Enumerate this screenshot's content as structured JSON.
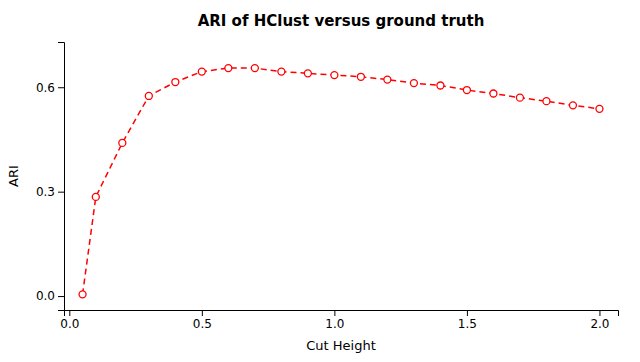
{
  "chart_data": {
    "type": "line",
    "title": "ARI of HClust versus ground truth",
    "xlabel": "Cut Height",
    "ylabel": "ARI",
    "x": [
      0.05,
      0.1,
      0.2,
      0.3,
      0.4,
      0.5,
      0.6,
      0.7,
      0.8,
      0.9,
      1.0,
      1.1,
      1.2,
      1.3,
      1.4,
      1.5,
      1.6,
      1.7,
      1.8,
      1.9,
      2.0
    ],
    "values": [
      0.005,
      0.285,
      0.44,
      0.575,
      0.615,
      0.645,
      0.655,
      0.655,
      0.645,
      0.64,
      0.635,
      0.63,
      0.622,
      0.612,
      0.605,
      0.592,
      0.582,
      0.57,
      0.56,
      0.548,
      0.538
    ],
    "color": "#FF0000",
    "marker": "circle",
    "line_style": "dashed",
    "xlim": [
      -0.02,
      2.07
    ],
    "ylim": [
      -0.04,
      0.73
    ],
    "xticks": [
      {
        "value": 0.0,
        "label": "0.0"
      },
      0.5,
      {
        "value": 1.0,
        "label": "1.0"
      },
      1.5,
      {
        "value": 2.0,
        "label": "2.0"
      }
    ],
    "yticks": [
      {
        "value": 0.0,
        "label": "0.0"
      },
      0.3,
      0.6
    ],
    "grid": false
  }
}
